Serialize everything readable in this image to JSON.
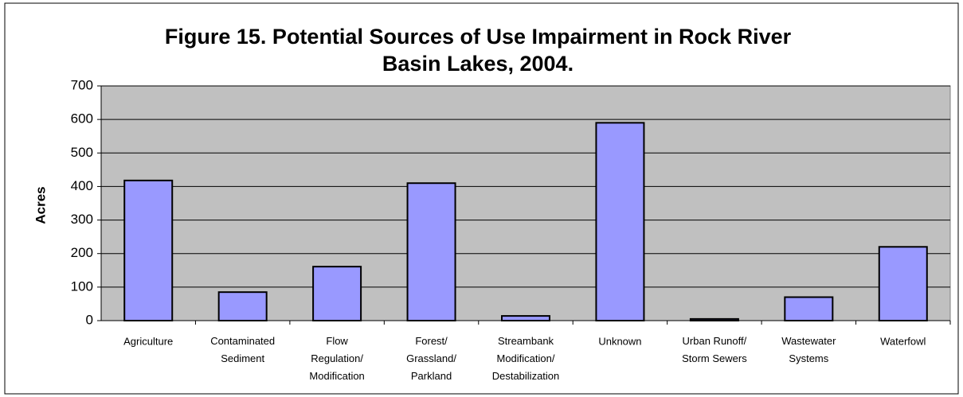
{
  "chart_data": {
    "type": "bar",
    "title": "Figure 15.  Potential Sources of Use Impairment in Rock River\nBasin Lakes, 2004.",
    "y_label": "Acres",
    "categories": [
      "Agriculture",
      "Contaminated\nSediment",
      "Flow\nRegulation/\nModification",
      "Forest/\nGrassland/\nParkland",
      "Streambank\nModification/\nDestabilization",
      "Unknown",
      "Urban Runoff/\nStorm Sewers",
      "Wastewater\nSystems",
      "Waterfowl"
    ],
    "values": [
      418,
      85,
      161,
      410,
      14,
      590,
      5,
      70,
      220
    ],
    "color": "#9999ff",
    "ylim": [
      0,
      700
    ],
    "yticks": [
      0,
      100,
      200,
      300,
      400,
      500,
      600,
      700
    ],
    "grid": true
  }
}
